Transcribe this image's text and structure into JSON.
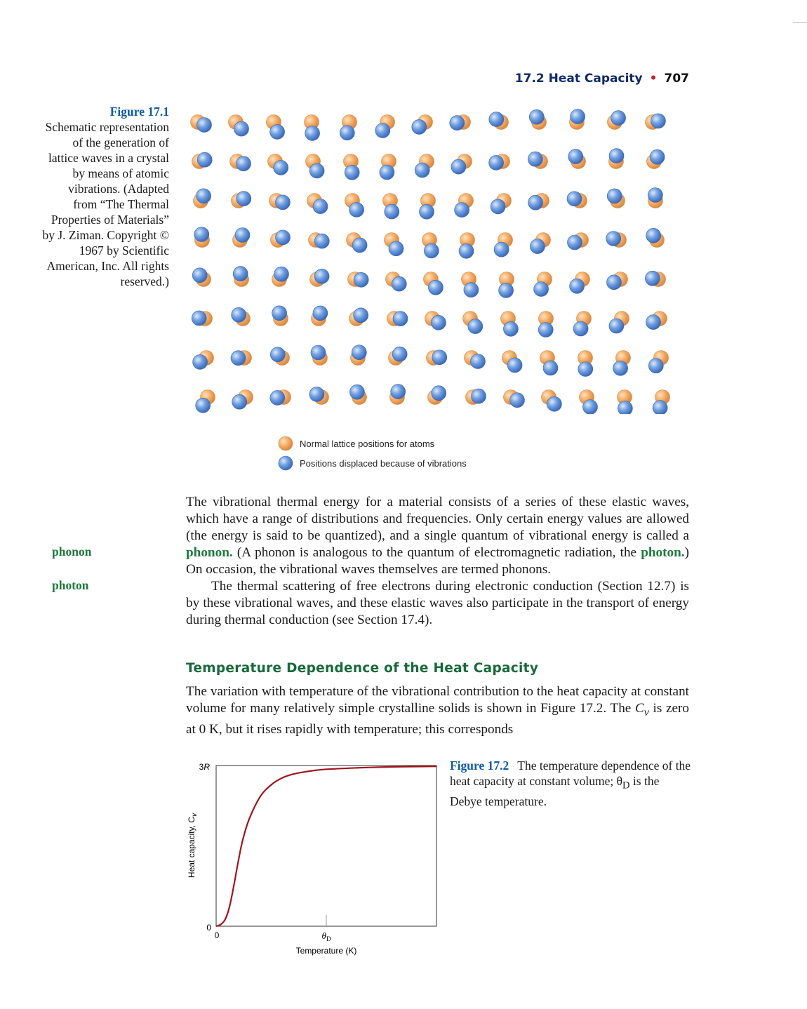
{
  "header": {
    "section": "17.2 Heat Capacity",
    "bullet": "•",
    "page_number": "707"
  },
  "figure1": {
    "label": "Figure 17.1",
    "caption": "Schematic representation of the generation of lattice waves in a crystal by means of atomic vibrations. (Adapted from “The Thermal Properties of Materials” by J. Ziman. Copyright © 1967 by Scientific American, Inc. All rights reserved.)",
    "legend": [
      {
        "label": "Normal lattice positions for atoms",
        "color": "#f2a65a"
      },
      {
        "label": "Positions displaced because of vibrations",
        "color": "#5b8fd6"
      }
    ]
  },
  "margin_terms": {
    "phonon": "phonon",
    "photon": "photon"
  },
  "paragraph1": {
    "t1": "The vibrational thermal energy for a material consists of a series of these elastic waves, which have a range of distributions and frequencies. Only certain energy values are allowed (the energy is said to be quantized), and a single quantum of vibrational energy is called a ",
    "term1": "phonon.",
    "t2": " (A phonon is analogous to the quantum of electromagnetic radiation, the ",
    "term2": "photon.",
    "t3": ") On occasion, the vibrational waves themselves are termed phonons."
  },
  "paragraph2": "The thermal scattering of free electrons during electronic conduction (Section 12.7) is by these vibrational waves, and these elastic waves also participate in the transport of energy during thermal conduction (see Section 17.4).",
  "section": {
    "heading": "Temperature Dependence of the Heat Capacity",
    "t1": "The variation with temperature of the vibrational contribution to the heat capacity at constant volume for many relatively simple crystalline solids is shown in Figure 17.2. The ",
    "cv_symbol": "C",
    "cv_sub": "v",
    "t2": " is zero at 0 K, but it rises rapidly with temperature; this corresponds"
  },
  "figure2": {
    "label": "Figure 17.2",
    "caption_t1": "The temperature dependence of the heat capacity at constant volume; θ",
    "caption_sub": "D",
    "caption_t2": " is the Debye temperature."
  },
  "chart_data": {
    "type": "line",
    "xlabel": "Temperature (K)",
    "ylabel": "Heat capacity, C",
    "ylabel_sub": "v",
    "x_ticks": [
      {
        "label": "0",
        "x": 0
      },
      {
        "label": "θ",
        "sub": "D",
        "x": 0.5
      }
    ],
    "y_ticks": [
      {
        "label": "0",
        "y": 0
      },
      {
        "label": "3R",
        "y": 3
      }
    ],
    "xlim": [
      0,
      1
    ],
    "ylim": [
      0,
      3
    ],
    "series": [
      {
        "color": "#a1141c",
        "x": [
          0,
          0.02,
          0.04,
          0.06,
          0.08,
          0.1,
          0.12,
          0.15,
          0.2,
          0.25,
          0.3,
          0.35,
          0.4,
          0.45,
          0.5,
          0.6,
          0.7,
          0.8,
          0.9,
          1.0
        ],
        "y": [
          0,
          0.03,
          0.12,
          0.35,
          0.75,
          1.2,
          1.6,
          2.0,
          2.42,
          2.64,
          2.77,
          2.84,
          2.88,
          2.91,
          2.93,
          2.95,
          2.965,
          2.975,
          2.98,
          2.985
        ]
      }
    ]
  }
}
